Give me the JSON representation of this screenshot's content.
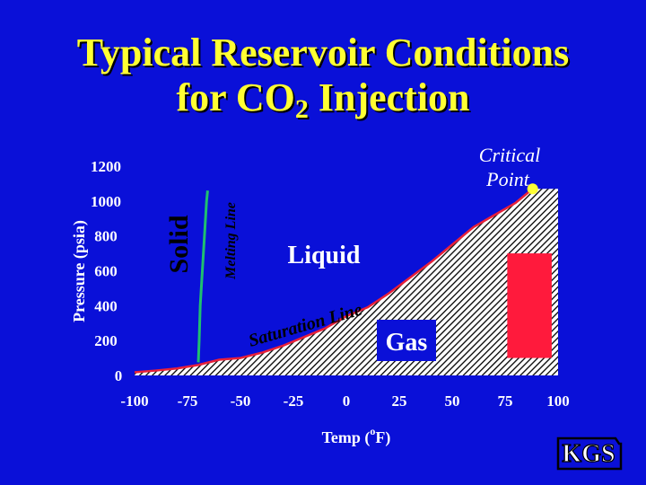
{
  "slide": {
    "title_line1": "Typical Reservoir Conditions",
    "title_line2_pre": "for CO",
    "title_line2_sub": "2",
    "title_line2_post": " Injection",
    "logo": "KGS"
  },
  "chart_data": {
    "type": "line",
    "title": "Typical Reservoir Conditions for CO2 Injection",
    "xlabel_pre": "Temp (",
    "xlabel_sup": "o",
    "xlabel_post": "F)",
    "ylabel": "Pressure (psia)",
    "xlim": [
      -100,
      100
    ],
    "ylim": [
      0,
      1200
    ],
    "xticks": [
      -100,
      -75,
      -50,
      -25,
      0,
      25,
      50,
      75,
      100
    ],
    "yticks": [
      0,
      200,
      400,
      600,
      800,
      1000,
      1200
    ],
    "grid": false,
    "series": [
      {
        "name": "Saturation Line",
        "x": [
          -100,
          -90,
          -80,
          -70,
          -60,
          -50,
          -40,
          -30,
          -20,
          -10,
          0,
          10,
          20,
          30,
          40,
          50,
          60,
          70,
          80,
          88
        ],
        "y": [
          18,
          28,
          40,
          60,
          90,
          100,
          130,
          170,
          220,
          270,
          340,
          390,
          470,
          560,
          650,
          750,
          850,
          920,
          990,
          1070
        ]
      },
      {
        "name": "Melting Line",
        "x": [
          -69.9,
          -69.5,
          -69,
          -68,
          -67,
          -66,
          -65.5
        ],
        "y": [
          75,
          200,
          400,
          600,
          800,
          1000,
          1060
        ]
      }
    ],
    "regions": {
      "gas_hatch_top_psi": 1070,
      "reservoir_box": {
        "x": [
          76,
          97
        ],
        "y": [
          100,
          700
        ]
      }
    },
    "annotations": {
      "solid": "Solid",
      "melting_line": "Melting Line",
      "liquid": "Liquid",
      "saturation_line": "Saturation Line",
      "gas": "Gas",
      "critical_point_line1": "Critical",
      "critical_point_line2": "Point",
      "critical_point": {
        "x": 88,
        "y": 1070
      }
    },
    "colors": {
      "background": "#0a10d8",
      "title": "#ffff33",
      "saturation_line": "#e8203a",
      "melting_line": "#1fbf70",
      "reservoir_box": "#ff1a3c",
      "critical_point": "#ffff33",
      "hatch": "#000000"
    }
  }
}
